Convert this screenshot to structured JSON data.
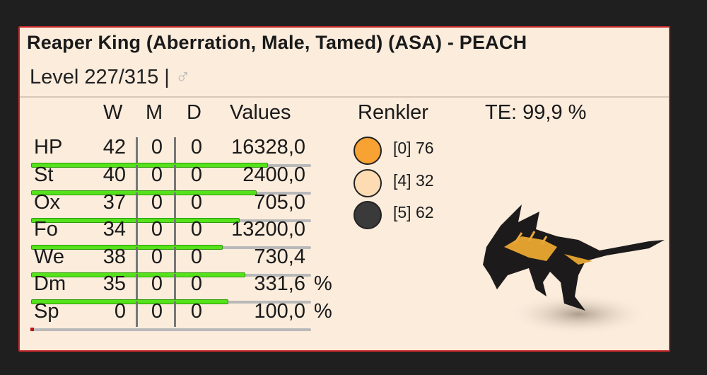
{
  "header": {
    "title": "Reaper King (Aberration, Male, Tamed) (ASA) - PEACH",
    "level_label": "Level 227/315 |",
    "sex_symbol": "♂"
  },
  "columns": {
    "w": "W",
    "m": "M",
    "d": "D",
    "values": "Values",
    "colors": "Renkler",
    "te": "TE: 99,9 %"
  },
  "stats": [
    {
      "label": "HP",
      "w": "42",
      "m": "0",
      "d": "0",
      "value": "16328,0",
      "unit": "",
      "bar_fraction": 0.84
    },
    {
      "label": "St",
      "w": "40",
      "m": "0",
      "d": "0",
      "value": "2400,0",
      "unit": "",
      "bar_fraction": 0.8
    },
    {
      "label": "Ox",
      "w": "37",
      "m": "0",
      "d": "0",
      "value": "705,0",
      "unit": "",
      "bar_fraction": 0.74
    },
    {
      "label": "Fo",
      "w": "34",
      "m": "0",
      "d": "0",
      "value": "13200,0",
      "unit": "",
      "bar_fraction": 0.68
    },
    {
      "label": "We",
      "w": "38",
      "m": "0",
      "d": "0",
      "value": "730,4",
      "unit": "",
      "bar_fraction": 0.76
    },
    {
      "label": "Dm",
      "w": "35",
      "m": "0",
      "d": "0",
      "value": "331,6",
      "unit": "%",
      "bar_fraction": 0.7
    },
    {
      "label": "Sp",
      "w": "0",
      "m": "0",
      "d": "0",
      "value": "100,0",
      "unit": "%",
      "bar_fraction": 0
    }
  ],
  "colors": [
    {
      "text": "[0] 76",
      "hex": "#f7a232"
    },
    {
      "text": "[4] 32",
      "hex": "#fddcb4"
    },
    {
      "text": "[5] 62",
      "hex": "#3a3a3a"
    }
  ],
  "image": {
    "icon": "reaper-king-creature-image"
  }
}
